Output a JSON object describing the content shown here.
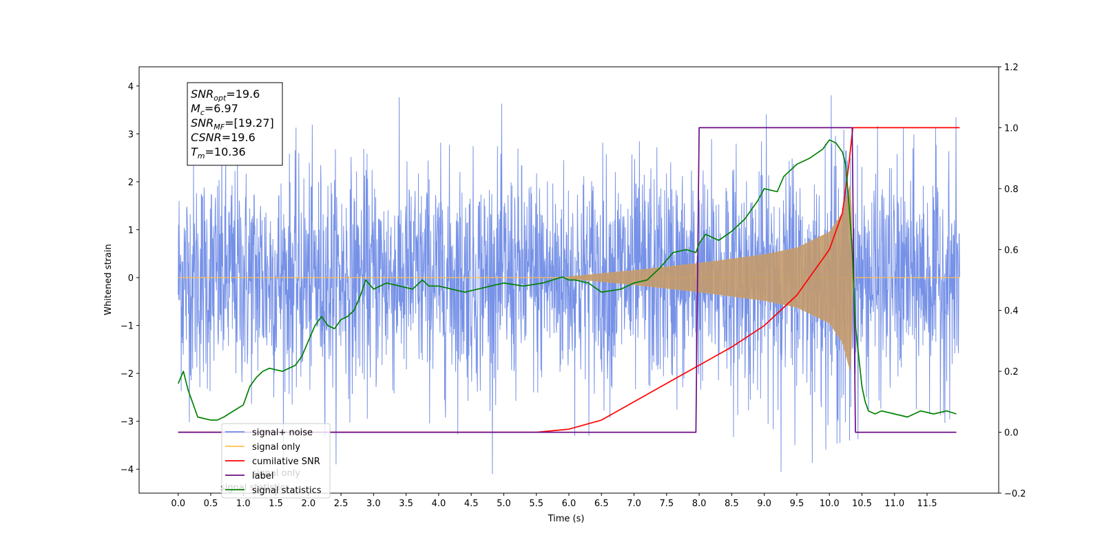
{
  "chart_data": {
    "type": "line",
    "xlabel": "Time (s)",
    "ylabel": "Whitened strain",
    "xlim": [
      -0.6,
      12.6
    ],
    "ylim": [
      -4.5,
      4.4
    ],
    "y2lim": [
      -0.2,
      1.2
    ],
    "x_ticks": [
      "0.0",
      "0.5",
      "1.0",
      "1.5",
      "2.0",
      "2.5",
      "3.0",
      "3.5",
      "4.0",
      "4.5",
      "5.0",
      "5.5",
      "6.0",
      "6.5",
      "7.0",
      "7.5",
      "8.0",
      "8.5",
      "9.0",
      "9.5",
      "10.0",
      "10.5",
      "11.0",
      "11.5"
    ],
    "y_ticks": [
      "4",
      "3",
      "2",
      "1",
      "0",
      "−1",
      "−2",
      "−3",
      "−4"
    ],
    "y2_ticks": [
      "1.2",
      "1.0",
      "0.8",
      "0.6",
      "0.4",
      "0.2",
      "0.0",
      "−0.2"
    ],
    "annotation": {
      "lines": [
        {
          "base": "SNR",
          "sub": "opt",
          "value": "=19.6"
        },
        {
          "base": "M",
          "sub": "c",
          "value": "=6.97"
        },
        {
          "base": "SNR",
          "sub": "MF",
          "value": "=[19.27]"
        },
        {
          "base": "CSNR",
          "sub": "",
          "value": "=19.6"
        },
        {
          "base": "T",
          "sub": "m",
          "value": "=10.36"
        }
      ]
    },
    "legend": {
      "placement": "lower-left",
      "entries": [
        {
          "label": "signal+ noise",
          "color": "#6f8be6"
        },
        {
          "label": "signal only",
          "color": "#ffc04d"
        },
        {
          "label": "cumilative SNR",
          "color": "#ff0000"
        },
        {
          "label": "label",
          "color": "#6a0d83"
        },
        {
          "label": "signal statistics",
          "color": "#008000"
        }
      ],
      "overlapped_text": [
        "signal only",
        "signal statistics"
      ]
    },
    "series": [
      {
        "name": "signal+ noise",
        "axis": "left",
        "kind": "noise_band",
        "color": "#6f8be6",
        "x_range": [
          0.0,
          12.0
        ],
        "approx_envelope": [
          -3.5,
          3.5
        ],
        "peak_max": 4.0,
        "peak_min": -4.1
      },
      {
        "name": "signal only",
        "axis": "left",
        "kind": "chirp_envelope",
        "color": "#c8a06a",
        "x": [
          6.0,
          7.0,
          8.0,
          9.0,
          9.5,
          10.0,
          10.2,
          10.33,
          10.36
        ],
        "amp": [
          0.02,
          0.15,
          0.3,
          0.48,
          0.62,
          0.95,
          1.35,
          2.0,
          0.0
        ]
      },
      {
        "name": "cumilative SNR",
        "axis": "right",
        "color": "#ff0000",
        "x": [
          0.0,
          5.5,
          6.0,
          6.5,
          7.0,
          7.5,
          8.0,
          8.5,
          9.0,
          9.5,
          10.0,
          10.2,
          10.3,
          10.36,
          12.0
        ],
        "y": [
          0.0,
          0.0,
          0.01,
          0.04,
          0.1,
          0.16,
          0.22,
          0.28,
          0.35,
          0.45,
          0.6,
          0.72,
          0.88,
          1.0,
          1.0
        ]
      },
      {
        "name": "label",
        "axis": "right",
        "color": "#6a0d83",
        "x": [
          0.0,
          7.95,
          8.0,
          10.35,
          10.4,
          11.95
        ],
        "y": [
          0.0,
          0.0,
          1.0,
          1.0,
          0.0,
          0.0
        ]
      },
      {
        "name": "signal statistics",
        "axis": "right",
        "color": "#008000",
        "x": [
          0.0,
          0.08,
          0.15,
          0.3,
          0.5,
          0.6,
          0.7,
          0.85,
          1.0,
          1.1,
          1.2,
          1.3,
          1.4,
          1.6,
          1.8,
          1.9,
          2.0,
          2.1,
          2.2,
          2.3,
          2.4,
          2.5,
          2.6,
          2.7,
          2.8,
          2.88,
          3.0,
          3.1,
          3.2,
          3.4,
          3.6,
          3.75,
          3.85,
          4.0,
          4.2,
          4.4,
          4.6,
          4.8,
          5.0,
          5.3,
          5.6,
          5.9,
          6.0,
          6.1,
          6.3,
          6.5,
          6.8,
          7.0,
          7.2,
          7.4,
          7.6,
          7.8,
          7.95,
          8.0,
          8.1,
          8.3,
          8.5,
          8.7,
          8.9,
          9.0,
          9.2,
          9.3,
          9.5,
          9.7,
          9.9,
          10.0,
          10.1,
          10.2,
          10.25,
          10.3,
          10.35,
          10.4,
          10.5,
          10.55,
          10.6,
          10.7,
          10.8,
          11.0,
          11.2,
          11.4,
          11.6,
          11.8,
          11.95
        ],
        "y": [
          0.16,
          0.2,
          0.14,
          0.05,
          0.04,
          0.04,
          0.05,
          0.07,
          0.09,
          0.15,
          0.18,
          0.2,
          0.21,
          0.2,
          0.22,
          0.25,
          0.3,
          0.35,
          0.38,
          0.35,
          0.34,
          0.37,
          0.38,
          0.4,
          0.45,
          0.5,
          0.47,
          0.48,
          0.49,
          0.48,
          0.47,
          0.5,
          0.48,
          0.48,
          0.47,
          0.46,
          0.47,
          0.48,
          0.49,
          0.48,
          0.49,
          0.51,
          0.5,
          0.5,
          0.49,
          0.46,
          0.47,
          0.49,
          0.5,
          0.54,
          0.59,
          0.6,
          0.59,
          0.62,
          0.65,
          0.63,
          0.66,
          0.7,
          0.76,
          0.8,
          0.79,
          0.84,
          0.88,
          0.9,
          0.93,
          0.96,
          0.95,
          0.92,
          0.88,
          0.75,
          0.6,
          0.35,
          0.15,
          0.1,
          0.07,
          0.06,
          0.07,
          0.06,
          0.05,
          0.07,
          0.06,
          0.07,
          0.06
        ]
      }
    ]
  }
}
